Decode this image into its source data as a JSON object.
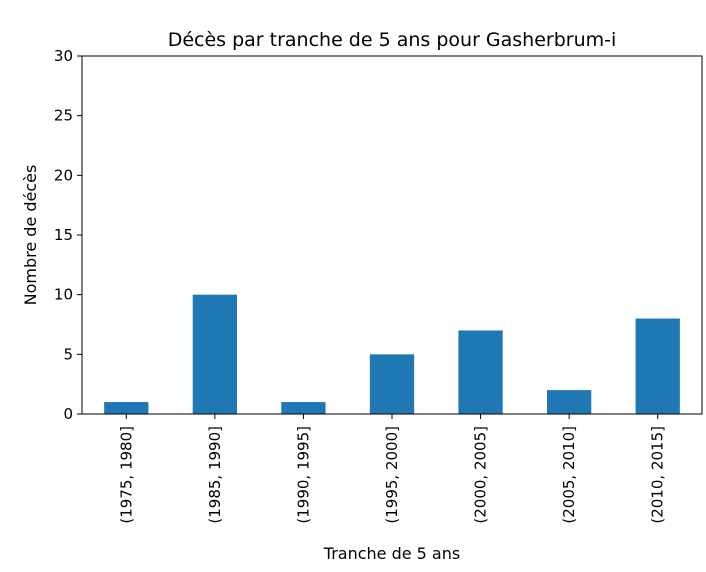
{
  "chart_data": {
    "type": "bar",
    "title": "Décès par tranche de 5 ans pour Gasherbrum-i",
    "xlabel": "Tranche de 5 ans",
    "ylabel": "Nombre de décès",
    "categories": [
      "(1975, 1980]",
      "(1985, 1990]",
      "(1990, 1995]",
      "(1995, 2000]",
      "(2000, 2005]",
      "(2005, 2010]",
      "(2010, 2015]"
    ],
    "values": [
      1,
      10,
      1,
      5,
      7,
      2,
      8
    ],
    "ylim": [
      0,
      30
    ],
    "yticks": [
      0,
      5,
      10,
      15,
      20,
      25,
      30
    ],
    "bar_color": "#1f77b4",
    "grid": false,
    "legend": "none"
  }
}
